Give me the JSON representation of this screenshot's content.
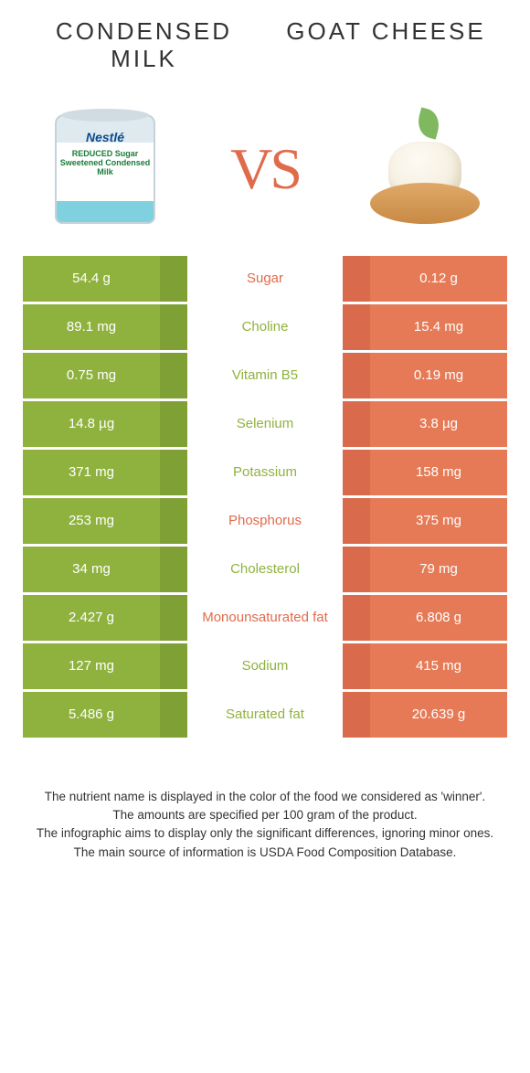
{
  "header": {
    "left_title": "CONDENSED MILK",
    "right_title": "GOAT CHEESE",
    "vs_label": "VS"
  },
  "colors": {
    "left_bar": "#8fb23f",
    "left_bar_shade": "#7fa035",
    "right_bar": "#e67a56",
    "right_bar_shade": "#d96a4b",
    "nutrient_left_color": "#8fb23f",
    "nutrient_right_color": "#e06b4b",
    "background": "#ffffff"
  },
  "nutrients": [
    {
      "name": "Sugar",
      "left": "54.4 g",
      "right": "0.12 g",
      "winner": "right"
    },
    {
      "name": "Choline",
      "left": "89.1 mg",
      "right": "15.4 mg",
      "winner": "left"
    },
    {
      "name": "Vitamin B5",
      "left": "0.75 mg",
      "right": "0.19 mg",
      "winner": "left"
    },
    {
      "name": "Selenium",
      "left": "14.8 µg",
      "right": "3.8 µg",
      "winner": "left"
    },
    {
      "name": "Potassium",
      "left": "371 mg",
      "right": "158 mg",
      "winner": "left"
    },
    {
      "name": "Phosphorus",
      "left": "253 mg",
      "right": "375 mg",
      "winner": "right"
    },
    {
      "name": "Cholesterol",
      "left": "34 mg",
      "right": "79 mg",
      "winner": "left"
    },
    {
      "name": "Monounsaturated fat",
      "left": "2.427 g",
      "right": "6.808 g",
      "winner": "right"
    },
    {
      "name": "Sodium",
      "left": "127 mg",
      "right": "415 mg",
      "winner": "left"
    },
    {
      "name": "Saturated fat",
      "left": "5.486 g",
      "right": "20.639 g",
      "winner": "left"
    }
  ],
  "footer": {
    "line1": "The nutrient name is displayed in the color of the food we considered as 'winner'.",
    "line2": "The amounts are specified per 100 gram of the product.",
    "line3": "The infographic aims to display only the significant differences, ignoring minor ones.",
    "line4": "The main source of information is USDA Food Composition Database."
  },
  "can_labels": {
    "brand": "Nestlé",
    "sub": "REDUCED Sugar Sweetened Condensed Milk"
  }
}
